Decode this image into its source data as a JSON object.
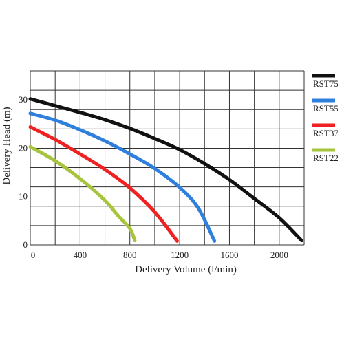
{
  "chart_data": {
    "type": "line",
    "xlabel": "Delivery Volume (l/min)",
    "ylabel": "Delivery Head (m)",
    "xlim": [
      0,
      2200
    ],
    "ylim": [
      0,
      36
    ],
    "x_ticks": [
      0,
      400,
      800,
      1200,
      1600,
      2000
    ],
    "y_ticks": [
      0,
      10,
      20,
      30
    ],
    "x_grid_step": 200,
    "y_grid_step": 4,
    "grid": true,
    "legend_position": "right",
    "series": [
      {
        "name": "RST75",
        "color": "#111111",
        "points": [
          [
            0,
            30.2
          ],
          [
            200,
            28.8
          ],
          [
            400,
            27.4
          ],
          [
            600,
            25.9
          ],
          [
            800,
            24.1
          ],
          [
            1000,
            22.0
          ],
          [
            1200,
            19.7
          ],
          [
            1400,
            16.8
          ],
          [
            1600,
            13.5
          ],
          [
            1800,
            9.6
          ],
          [
            2000,
            5.6
          ],
          [
            2180,
            0.9
          ]
        ]
      },
      {
        "name": "RST55",
        "color": "#2f7fdc",
        "points": [
          [
            0,
            27.2
          ],
          [
            200,
            25.8
          ],
          [
            400,
            23.8
          ],
          [
            600,
            21.5
          ],
          [
            800,
            18.8
          ],
          [
            1000,
            15.8
          ],
          [
            1200,
            11.9
          ],
          [
            1350,
            7.6
          ],
          [
            1480,
            0.8
          ]
        ]
      },
      {
        "name": "RST37",
        "color": "#ee2222",
        "points": [
          [
            0,
            24.4
          ],
          [
            200,
            21.8
          ],
          [
            400,
            18.8
          ],
          [
            600,
            15.6
          ],
          [
            800,
            11.8
          ],
          [
            1000,
            6.8
          ],
          [
            1180,
            0.8
          ]
        ]
      },
      {
        "name": "RST22",
        "color": "#a6c43c",
        "points": [
          [
            0,
            20.3
          ],
          [
            200,
            17.4
          ],
          [
            400,
            13.7
          ],
          [
            600,
            9.2
          ],
          [
            700,
            6.2
          ],
          [
            800,
            3.4
          ],
          [
            840,
            0.9
          ]
        ]
      }
    ]
  }
}
